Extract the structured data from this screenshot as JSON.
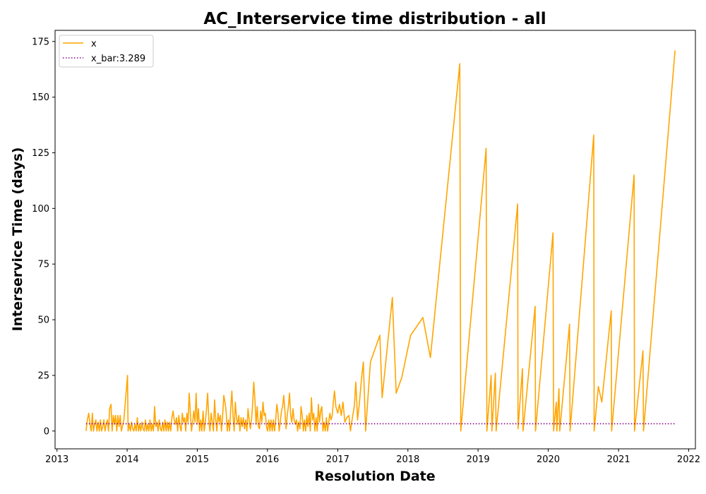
{
  "chart_data": {
    "type": "line",
    "title": "AC_Interservice time distribution - all",
    "xlabel": "Resolution Date",
    "ylabel": "Interservice Time (days)",
    "xlim": [
      "2012-12-22",
      "2022-02-05"
    ],
    "ylim": [
      -8,
      180
    ],
    "x_ticks": [
      "2013",
      "2014",
      "2015",
      "2016",
      "2017",
      "2018",
      "2019",
      "2020",
      "2021",
      "2022"
    ],
    "y_ticks": [
      0,
      25,
      50,
      75,
      100,
      125,
      150,
      175
    ],
    "grid": false,
    "legend_position": "top-left",
    "series": [
      {
        "name": "x",
        "color": "#FFA500",
        "style": "solid",
        "points": [
          [
            "2013-06-01",
            0
          ],
          [
            "2013-06-08",
            5
          ],
          [
            "2013-06-15",
            8
          ],
          [
            "2013-06-22",
            3
          ],
          [
            "2013-06-28",
            0
          ],
          [
            "2013-07-04",
            8
          ],
          [
            "2013-07-10",
            0
          ],
          [
            "2013-07-16",
            3
          ],
          [
            "2013-07-22",
            5
          ],
          [
            "2013-07-28",
            0
          ],
          [
            "2013-08-03",
            4
          ],
          [
            "2013-08-09",
            0
          ],
          [
            "2013-08-15",
            5
          ],
          [
            "2013-08-21",
            0
          ],
          [
            "2013-08-27",
            2
          ],
          [
            "2013-09-02",
            5
          ],
          [
            "2013-09-08",
            0
          ],
          [
            "2013-09-14",
            3
          ],
          [
            "2013-09-20",
            5
          ],
          [
            "2013-09-26",
            0
          ],
          [
            "2013-10-02",
            10
          ],
          [
            "2013-10-09",
            12
          ],
          [
            "2013-10-15",
            0
          ],
          [
            "2013-10-21",
            7
          ],
          [
            "2013-10-27",
            3
          ],
          [
            "2013-11-02",
            7
          ],
          [
            "2013-11-08",
            0
          ],
          [
            "2013-11-14",
            7
          ],
          [
            "2013-11-20",
            2
          ],
          [
            "2013-11-26",
            7
          ],
          [
            "2013-12-02",
            0
          ],
          [
            "2013-12-15",
            5
          ],
          [
            "2014-01-03",
            25
          ],
          [
            "2014-01-06",
            0
          ],
          [
            "2014-01-12",
            3
          ],
          [
            "2014-01-18",
            0
          ],
          [
            "2014-01-24",
            4
          ],
          [
            "2014-01-30",
            1
          ],
          [
            "2014-02-05",
            0
          ],
          [
            "2014-02-11",
            3
          ],
          [
            "2014-02-17",
            0
          ],
          [
            "2014-02-23",
            6
          ],
          [
            "2014-03-01",
            0
          ],
          [
            "2014-03-07",
            3
          ],
          [
            "2014-03-13",
            0
          ],
          [
            "2014-03-19",
            4
          ],
          [
            "2014-03-25",
            1
          ],
          [
            "2014-03-31",
            0
          ],
          [
            "2014-04-06",
            5
          ],
          [
            "2014-04-12",
            0
          ],
          [
            "2014-04-18",
            3
          ],
          [
            "2014-04-24",
            0
          ],
          [
            "2014-04-30",
            5
          ],
          [
            "2014-05-06",
            0
          ],
          [
            "2014-05-12",
            3
          ],
          [
            "2014-05-18",
            0
          ],
          [
            "2014-05-24",
            11
          ],
          [
            "2014-05-30",
            2
          ],
          [
            "2014-06-05",
            4
          ],
          [
            "2014-06-11",
            0
          ],
          [
            "2014-06-17",
            5
          ],
          [
            "2014-06-23",
            1
          ],
          [
            "2014-06-29",
            0
          ],
          [
            "2014-07-05",
            4
          ],
          [
            "2014-07-11",
            0
          ],
          [
            "2014-07-17",
            5
          ],
          [
            "2014-07-23",
            0
          ],
          [
            "2014-07-29",
            4
          ],
          [
            "2014-08-04",
            0
          ],
          [
            "2014-08-10",
            4
          ],
          [
            "2014-08-16",
            0
          ],
          [
            "2014-08-22",
            6
          ],
          [
            "2014-08-28",
            9
          ],
          [
            "2014-09-03",
            5
          ],
          [
            "2014-09-09",
            3
          ],
          [
            "2014-09-15",
            6
          ],
          [
            "2014-09-21",
            0
          ],
          [
            "2014-09-27",
            7
          ],
          [
            "2014-10-03",
            2
          ],
          [
            "2014-10-09",
            0
          ],
          [
            "2014-10-15",
            8
          ],
          [
            "2014-10-21",
            4
          ],
          [
            "2014-10-27",
            6
          ],
          [
            "2014-11-02",
            0
          ],
          [
            "2014-11-08",
            8
          ],
          [
            "2014-11-14",
            4
          ],
          [
            "2014-11-20",
            17
          ],
          [
            "2014-11-26",
            8
          ],
          [
            "2014-12-02",
            0
          ],
          [
            "2014-12-08",
            4
          ],
          [
            "2014-12-14",
            9
          ],
          [
            "2014-12-20",
            4
          ],
          [
            "2014-12-26",
            17
          ],
          [
            "2015-01-01",
            3
          ],
          [
            "2015-01-07",
            10
          ],
          [
            "2015-01-13",
            0
          ],
          [
            "2015-01-19",
            5
          ],
          [
            "2015-01-25",
            0
          ],
          [
            "2015-01-31",
            9
          ],
          [
            "2015-02-06",
            0
          ],
          [
            "2015-02-12",
            4
          ],
          [
            "2015-02-18",
            10
          ],
          [
            "2015-02-24",
            17
          ],
          [
            "2015-03-02",
            5
          ],
          [
            "2015-03-08",
            0
          ],
          [
            "2015-03-14",
            8
          ],
          [
            "2015-03-20",
            4
          ],
          [
            "2015-03-26",
            0
          ],
          [
            "2015-04-01",
            14
          ],
          [
            "2015-04-07",
            5
          ],
          [
            "2015-04-13",
            0
          ],
          [
            "2015-04-19",
            8
          ],
          [
            "2015-04-25",
            4
          ],
          [
            "2015-05-01",
            7
          ],
          [
            "2015-05-07",
            0
          ],
          [
            "2015-05-13",
            7
          ],
          [
            "2015-05-19",
            16
          ],
          [
            "2015-05-25",
            13
          ],
          [
            "2015-05-31",
            9
          ],
          [
            "2015-06-06",
            0
          ],
          [
            "2015-06-12",
            5
          ],
          [
            "2015-06-18",
            0
          ],
          [
            "2015-06-24",
            10
          ],
          [
            "2015-06-30",
            18
          ],
          [
            "2015-07-06",
            7
          ],
          [
            "2015-07-12",
            0
          ],
          [
            "2015-07-18",
            13
          ],
          [
            "2015-07-24",
            6
          ],
          [
            "2015-07-30",
            3
          ],
          [
            "2015-08-05",
            7
          ],
          [
            "2015-08-11",
            0
          ],
          [
            "2015-08-17",
            6
          ],
          [
            "2015-08-23",
            2
          ],
          [
            "2015-08-29",
            6
          ],
          [
            "2015-09-04",
            1
          ],
          [
            "2015-09-10",
            5
          ],
          [
            "2015-09-16",
            0
          ],
          [
            "2015-09-22",
            10
          ],
          [
            "2015-09-28",
            5
          ],
          [
            "2015-10-04",
            1
          ],
          [
            "2015-10-10",
            5
          ],
          [
            "2015-10-16",
            12
          ],
          [
            "2015-10-22",
            22
          ],
          [
            "2015-10-28",
            14
          ],
          [
            "2015-11-03",
            3
          ],
          [
            "2015-11-09",
            11
          ],
          [
            "2015-11-15",
            2
          ],
          [
            "2015-11-21",
            1
          ],
          [
            "2015-11-27",
            9
          ],
          [
            "2015-12-03",
            4
          ],
          [
            "2015-12-09",
            13
          ],
          [
            "2015-12-15",
            7
          ],
          [
            "2015-12-21",
            8
          ],
          [
            "2015-12-27",
            2
          ],
          [
            "2016-01-02",
            0
          ],
          [
            "2016-01-08",
            5
          ],
          [
            "2016-01-14",
            0
          ],
          [
            "2016-01-20",
            5
          ],
          [
            "2016-01-26",
            0
          ],
          [
            "2016-02-01",
            5
          ],
          [
            "2016-02-07",
            0
          ],
          [
            "2016-02-13",
            5
          ],
          [
            "2016-02-19",
            12
          ],
          [
            "2016-02-25",
            8
          ],
          [
            "2016-03-02",
            0
          ],
          [
            "2016-03-08",
            4
          ],
          [
            "2016-03-14",
            9
          ],
          [
            "2016-03-20",
            11
          ],
          [
            "2016-03-26",
            16
          ],
          [
            "2016-04-01",
            9
          ],
          [
            "2016-04-07",
            1
          ],
          [
            "2016-04-13",
            7
          ],
          [
            "2016-04-19",
            11
          ],
          [
            "2016-04-25",
            17
          ],
          [
            "2016-05-01",
            7
          ],
          [
            "2016-05-07",
            4
          ],
          [
            "2016-05-13",
            10
          ],
          [
            "2016-05-19",
            5
          ],
          [
            "2016-05-25",
            3
          ],
          [
            "2016-05-31",
            5
          ],
          [
            "2016-06-06",
            0
          ],
          [
            "2016-06-12",
            4
          ],
          [
            "2016-06-18",
            1
          ],
          [
            "2016-06-24",
            11
          ],
          [
            "2016-06-30",
            7
          ],
          [
            "2016-07-06",
            0
          ],
          [
            "2016-07-12",
            5
          ],
          [
            "2016-07-18",
            0
          ],
          [
            "2016-07-24",
            7
          ],
          [
            "2016-07-30",
            2
          ],
          [
            "2016-08-05",
            8
          ],
          [
            "2016-08-11",
            0
          ],
          [
            "2016-08-17",
            15
          ],
          [
            "2016-08-23",
            5
          ],
          [
            "2016-08-29",
            8
          ],
          [
            "2016-09-04",
            0
          ],
          [
            "2016-09-10",
            6
          ],
          [
            "2016-09-16",
            0
          ],
          [
            "2016-09-22",
            12
          ],
          [
            "2016-09-28",
            4
          ],
          [
            "2016-10-04",
            9
          ],
          [
            "2016-10-10",
            11
          ],
          [
            "2016-10-16",
            0
          ],
          [
            "2016-10-22",
            4
          ],
          [
            "2016-10-28",
            0
          ],
          [
            "2016-11-03",
            6
          ],
          [
            "2016-11-09",
            0
          ],
          [
            "2016-11-15",
            4
          ],
          [
            "2016-11-21",
            8
          ],
          [
            "2016-11-27",
            5
          ],
          [
            "2016-12-03",
            7
          ],
          [
            "2016-12-09",
            13
          ],
          [
            "2016-12-15",
            18
          ],
          [
            "2016-12-22",
            11
          ],
          [
            "2017-01-01",
            8
          ],
          [
            "2017-01-10",
            12
          ],
          [
            "2017-01-19",
            7
          ],
          [
            "2017-01-28",
            13
          ],
          [
            "2017-02-07",
            4
          ],
          [
            "2017-02-17",
            6
          ],
          [
            "2017-02-28",
            7
          ],
          [
            "2017-03-08",
            0
          ],
          [
            "2017-03-18",
            6
          ],
          [
            "2017-03-28",
            11
          ],
          [
            "2017-04-05",
            22
          ],
          [
            "2017-04-14",
            5
          ],
          [
            "2017-04-23",
            12
          ],
          [
            "2017-05-04",
            23
          ],
          [
            "2017-05-14",
            31
          ],
          [
            "2017-05-26",
            0
          ],
          [
            "2017-06-20",
            31
          ],
          [
            "2017-08-08",
            43
          ],
          [
            "2017-08-20",
            15
          ],
          [
            "2017-10-12",
            60
          ],
          [
            "2017-11-01",
            17
          ],
          [
            "2017-11-30",
            24
          ],
          [
            "2018-01-15",
            43
          ],
          [
            "2018-03-20",
            51
          ],
          [
            "2018-04-28",
            33
          ],
          [
            "2018-09-28",
            165
          ],
          [
            "2018-10-03",
            0
          ],
          [
            "2019-02-12",
            127
          ],
          [
            "2019-02-16",
            0
          ],
          [
            "2019-03-10",
            25
          ],
          [
            "2019-03-14",
            0
          ],
          [
            "2019-04-01",
            26
          ],
          [
            "2019-04-05",
            0
          ],
          [
            "2019-07-26",
            102
          ],
          [
            "2019-07-28",
            1
          ],
          [
            "2019-08-20",
            28
          ],
          [
            "2019-08-23",
            0
          ],
          [
            "2019-10-25",
            56
          ],
          [
            "2019-10-27",
            0
          ],
          [
            "2020-01-26",
            89
          ],
          [
            "2020-01-29",
            0
          ],
          [
            "2020-02-12",
            13
          ],
          [
            "2020-02-15",
            0
          ],
          [
            "2020-02-26",
            19
          ],
          [
            "2020-03-01",
            0
          ],
          [
            "2020-04-21",
            48
          ],
          [
            "2020-04-24",
            0
          ],
          [
            "2020-08-25",
            133
          ],
          [
            "2020-08-27",
            0
          ],
          [
            "2020-09-18",
            20
          ],
          [
            "2020-10-06",
            13
          ],
          [
            "2020-11-24",
            54
          ],
          [
            "2020-11-26",
            0
          ],
          [
            "2021-03-23",
            115
          ],
          [
            "2021-03-25",
            0
          ],
          [
            "2021-05-08",
            36
          ],
          [
            "2021-05-11",
            0
          ],
          [
            "2021-10-22",
            171
          ]
        ]
      },
      {
        "name": "x_bar:3.289",
        "color": "#800080",
        "style": "dotted",
        "points": [
          [
            "2013-06-01",
            3.289
          ],
          [
            "2021-10-22",
            3.289
          ]
        ]
      }
    ]
  }
}
